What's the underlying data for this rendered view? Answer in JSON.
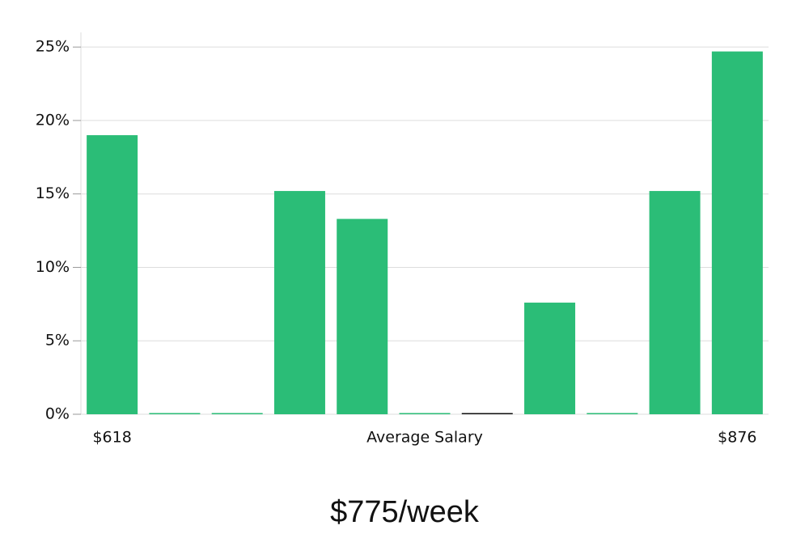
{
  "chart_data": {
    "type": "bar",
    "categories": [
      "$618",
      null,
      null,
      null,
      null,
      null,
      null,
      null,
      null,
      null,
      "$876"
    ],
    "values": [
      19,
      0,
      0,
      15.2,
      13.3,
      0,
      0,
      7.6,
      0,
      15.2,
      24.7
    ],
    "colors": [
      "#2bbd77",
      "#2bbd77",
      "#2bbd77",
      "#2bbd77",
      "#2bbd77",
      "#2bbd77",
      "#111111",
      "#2bbd77",
      "#2bbd77",
      "#2bbd77",
      "#2bbd77"
    ],
    "x_label": "Average Salary",
    "annotation": "$775/week",
    "ylim": [
      0,
      26
    ],
    "yticks": [
      {
        "value": 0,
        "label": "0%"
      },
      {
        "value": 5,
        "label": "5%"
      },
      {
        "value": 10,
        "label": "10%"
      },
      {
        "value": 15,
        "label": "15%"
      },
      {
        "value": 20,
        "label": "20%"
      },
      {
        "value": 25,
        "label": "25%"
      }
    ],
    "grid": true
  }
}
